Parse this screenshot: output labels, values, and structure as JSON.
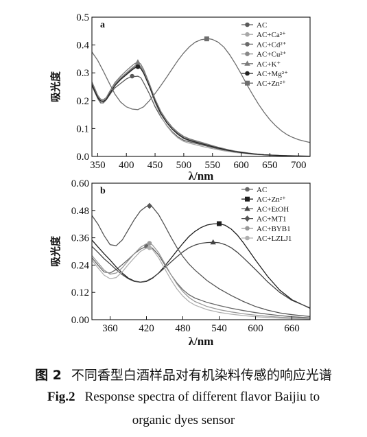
{
  "chart_data": [
    {
      "panel": "a",
      "type": "line",
      "xlabel": "λ/nm",
      "ylabel": "吸光度",
      "xlim": [
        340,
        720
      ],
      "ylim": [
        0.0,
        0.5
      ],
      "xticks": [
        350,
        400,
        450,
        500,
        550,
        600,
        650,
        700
      ],
      "yticks": [
        "0.0",
        "0.1",
        "0.2",
        "0.3",
        "0.4",
        "0.5"
      ],
      "legend_position": "top-right",
      "series": [
        {
          "name": "AC",
          "color": "#5a5a5a",
          "marker": "circle",
          "x": [
            340,
            345,
            350,
            355,
            360,
            365,
            370,
            375,
            380,
            390,
            400,
            410,
            415,
            420,
            425,
            430,
            440,
            450,
            460,
            470,
            480,
            490,
            500,
            510,
            520,
            530,
            540,
            550,
            560,
            570,
            580,
            590,
            600,
            610,
            620,
            640,
            660,
            680,
            700,
            720
          ],
          "y": [
            0.258,
            0.232,
            0.208,
            0.192,
            0.192,
            0.203,
            0.218,
            0.233,
            0.246,
            0.262,
            0.278,
            0.288,
            0.287,
            0.288,
            0.283,
            0.265,
            0.225,
            0.178,
            0.142,
            0.112,
            0.088,
            0.07,
            0.058,
            0.052,
            0.047,
            0.042,
            0.037,
            0.032,
            0.027,
            0.023,
            0.019,
            0.016,
            0.013,
            0.011,
            0.009,
            0.006,
            0.004,
            0.003,
            0.002,
            0.001
          ]
        },
        {
          "name": "AC+Ca²⁺",
          "color": "#a8a8a8",
          "marker": "circle",
          "x": [
            340,
            345,
            350,
            355,
            360,
            365,
            370,
            380,
            390,
            400,
            410,
            415,
            420,
            425,
            430,
            440,
            450,
            460,
            470,
            480,
            490,
            500,
            510,
            520,
            530,
            540,
            550,
            560,
            570,
            580,
            590,
            600,
            620,
            640,
            660,
            680,
            700,
            720
          ],
          "y": [
            0.262,
            0.238,
            0.214,
            0.198,
            0.196,
            0.203,
            0.222,
            0.255,
            0.275,
            0.292,
            0.31,
            0.318,
            0.322,
            0.318,
            0.302,
            0.252,
            0.192,
            0.145,
            0.11,
            0.085,
            0.066,
            0.054,
            0.047,
            0.042,
            0.037,
            0.032,
            0.028,
            0.024,
            0.02,
            0.017,
            0.014,
            0.012,
            0.008,
            0.005,
            0.003,
            0.002,
            0.001,
            0.001
          ]
        },
        {
          "name": "AC+Cd²⁺",
          "color": "#6a6a6a",
          "marker": "circle",
          "x": [
            340,
            345,
            350,
            355,
            360,
            365,
            370,
            380,
            390,
            400,
            410,
            415,
            420,
            425,
            430,
            440,
            450,
            460,
            470,
            480,
            490,
            500,
            510,
            520,
            530,
            540,
            550,
            560,
            570,
            580,
            590,
            600,
            620,
            640,
            660,
            680,
            700,
            720
          ],
          "y": [
            0.255,
            0.23,
            0.21,
            0.2,
            0.198,
            0.205,
            0.225,
            0.258,
            0.28,
            0.298,
            0.315,
            0.322,
            0.326,
            0.32,
            0.303,
            0.255,
            0.2,
            0.155,
            0.122,
            0.097,
            0.078,
            0.064,
            0.056,
            0.05,
            0.045,
            0.04,
            0.034,
            0.029,
            0.024,
            0.02,
            0.017,
            0.014,
            0.009,
            0.006,
            0.004,
            0.002,
            0.001,
            0.001
          ]
        },
        {
          "name": "AC+Cu²⁺",
          "color": "#888888",
          "marker": "circle",
          "x": [
            340,
            345,
            350,
            355,
            360,
            365,
            370,
            380,
            390,
            400,
            410,
            415,
            420,
            425,
            430,
            440,
            450,
            460,
            470,
            480,
            490,
            500,
            510,
            520,
            530,
            540,
            550,
            560,
            570,
            580,
            590,
            600,
            620,
            640,
            660,
            680,
            700,
            720
          ],
          "y": [
            0.265,
            0.24,
            0.216,
            0.202,
            0.2,
            0.207,
            0.226,
            0.26,
            0.282,
            0.3,
            0.318,
            0.326,
            0.33,
            0.324,
            0.306,
            0.258,
            0.203,
            0.16,
            0.128,
            0.103,
            0.084,
            0.07,
            0.061,
            0.055,
            0.049,
            0.043,
            0.037,
            0.031,
            0.026,
            0.022,
            0.018,
            0.015,
            0.01,
            0.006,
            0.004,
            0.002,
            0.001,
            0.001
          ]
        },
        {
          "name": "AC+K⁺",
          "color": "#7a7a7a",
          "marker": "triangle",
          "x": [
            340,
            345,
            350,
            355,
            360,
            365,
            370,
            380,
            390,
            400,
            410,
            415,
            420,
            425,
            430,
            440,
            450,
            460,
            470,
            480,
            490,
            500,
            510,
            520,
            530,
            540,
            550,
            560,
            570,
            580,
            590,
            600,
            620,
            640,
            660,
            680,
            700,
            720
          ],
          "y": [
            0.268,
            0.244,
            0.22,
            0.206,
            0.204,
            0.211,
            0.23,
            0.265,
            0.288,
            0.308,
            0.326,
            0.334,
            0.338,
            0.332,
            0.313,
            0.262,
            0.206,
            0.162,
            0.13,
            0.105,
            0.086,
            0.072,
            0.063,
            0.057,
            0.051,
            0.045,
            0.039,
            0.033,
            0.028,
            0.023,
            0.019,
            0.016,
            0.01,
            0.006,
            0.004,
            0.002,
            0.001,
            0.001
          ]
        },
        {
          "name": "AC+Mg²⁺",
          "color": "#222222",
          "marker": "circle",
          "x": [
            340,
            345,
            350,
            355,
            360,
            365,
            370,
            380,
            390,
            400,
            410,
            415,
            420,
            425,
            430,
            440,
            450,
            460,
            470,
            480,
            490,
            500,
            510,
            520,
            530,
            540,
            550,
            560,
            570,
            580,
            590,
            600,
            620,
            640,
            660,
            680,
            700,
            720
          ],
          "y": [
            0.258,
            0.234,
            0.212,
            0.199,
            0.197,
            0.204,
            0.222,
            0.254,
            0.276,
            0.294,
            0.311,
            0.318,
            0.322,
            0.316,
            0.299,
            0.252,
            0.198,
            0.154,
            0.122,
            0.098,
            0.08,
            0.066,
            0.058,
            0.052,
            0.046,
            0.041,
            0.035,
            0.03,
            0.025,
            0.021,
            0.017,
            0.014,
            0.009,
            0.006,
            0.004,
            0.002,
            0.001,
            0.001
          ]
        },
        {
          "name": "AC+Zn²⁺",
          "color": "#6e6e6e",
          "marker": "square",
          "x": [
            340,
            350,
            360,
            370,
            380,
            390,
            400,
            410,
            420,
            430,
            440,
            450,
            460,
            470,
            480,
            490,
            500,
            510,
            520,
            530,
            540,
            545,
            550,
            560,
            570,
            580,
            590,
            600,
            610,
            620,
            630,
            640,
            650,
            660,
            670,
            680,
            690,
            700,
            710,
            720
          ],
          "y": [
            0.375,
            0.345,
            0.306,
            0.264,
            0.224,
            0.195,
            0.178,
            0.17,
            0.168,
            0.178,
            0.2,
            0.226,
            0.254,
            0.284,
            0.315,
            0.345,
            0.372,
            0.394,
            0.41,
            0.419,
            0.422,
            0.422,
            0.42,
            0.41,
            0.392,
            0.365,
            0.332,
            0.296,
            0.258,
            0.222,
            0.188,
            0.158,
            0.132,
            0.11,
            0.092,
            0.078,
            0.068,
            0.06,
            0.055,
            0.05
          ]
        }
      ]
    },
    {
      "panel": "b",
      "type": "line",
      "xlabel": "λ/nm",
      "ylabel": "吸光度",
      "xlim": [
        330,
        690
      ],
      "ylim": [
        0.0,
        0.6
      ],
      "xticks": [
        360,
        420,
        480,
        540,
        600,
        660
      ],
      "yticks": [
        "0.00",
        "0.12",
        "0.24",
        "0.36",
        "0.48",
        "0.60"
      ],
      "legend_position": "top-right",
      "series": [
        {
          "name": "AC",
          "color": "#666666",
          "marker": "circle",
          "x": [
            330,
            340,
            350,
            360,
            370,
            380,
            390,
            400,
            410,
            420,
            425,
            430,
            440,
            450,
            460,
            470,
            480,
            490,
            500,
            520,
            540,
            560,
            580,
            600,
            620,
            640,
            660,
            690
          ],
          "y": [
            0.272,
            0.24,
            0.21,
            0.205,
            0.22,
            0.242,
            0.265,
            0.29,
            0.31,
            0.322,
            0.322,
            0.314,
            0.285,
            0.242,
            0.2,
            0.162,
            0.132,
            0.11,
            0.095,
            0.076,
            0.062,
            0.05,
            0.04,
            0.031,
            0.024,
            0.018,
            0.013,
            0.008
          ]
        },
        {
          "name": "AC+Zn²⁺",
          "color": "#1e1e1e",
          "marker": "square",
          "x": [
            330,
            340,
            350,
            360,
            370,
            380,
            390,
            400,
            410,
            420,
            430,
            440,
            450,
            460,
            470,
            480,
            490,
            500,
            510,
            520,
            530,
            540,
            550,
            560,
            570,
            580,
            590,
            600,
            620,
            640,
            660,
            690
          ],
          "y": [
            0.35,
            0.32,
            0.29,
            0.262,
            0.232,
            0.205,
            0.183,
            0.17,
            0.165,
            0.168,
            0.182,
            0.205,
            0.235,
            0.268,
            0.302,
            0.335,
            0.365,
            0.388,
            0.405,
            0.416,
            0.421,
            0.422,
            0.415,
            0.398,
            0.372,
            0.338,
            0.3,
            0.262,
            0.19,
            0.13,
            0.088,
            0.05
          ]
        },
        {
          "name": "AC+EtOH",
          "color": "#444444",
          "marker": "triangle",
          "x": [
            330,
            340,
            350,
            360,
            370,
            380,
            390,
            400,
            410,
            420,
            430,
            440,
            450,
            460,
            470,
            480,
            490,
            500,
            510,
            520,
            530,
            540,
            550,
            560,
            570,
            580,
            590,
            600,
            620,
            640,
            660,
            690
          ],
          "y": [
            0.322,
            0.296,
            0.268,
            0.245,
            0.22,
            0.198,
            0.18,
            0.168,
            0.165,
            0.17,
            0.184,
            0.204,
            0.228,
            0.252,
            0.276,
            0.298,
            0.316,
            0.328,
            0.336,
            0.339,
            0.34,
            0.338,
            0.33,
            0.316,
            0.296,
            0.272,
            0.246,
            0.22,
            0.166,
            0.12,
            0.085,
            0.052
          ]
        },
        {
          "name": "AC+MT1",
          "color": "#555555",
          "marker": "diamond",
          "x": [
            330,
            340,
            350,
            360,
            370,
            380,
            390,
            400,
            410,
            420,
            425,
            430,
            440,
            450,
            460,
            470,
            480,
            490,
            500,
            520,
            540,
            560,
            580,
            600,
            620,
            640,
            660,
            690
          ],
          "y": [
            0.458,
            0.42,
            0.37,
            0.33,
            0.325,
            0.35,
            0.395,
            0.44,
            0.478,
            0.498,
            0.5,
            0.495,
            0.462,
            0.415,
            0.365,
            0.318,
            0.278,
            0.245,
            0.218,
            0.172,
            0.136,
            0.106,
            0.08,
            0.058,
            0.042,
            0.03,
            0.022,
            0.014
          ]
        },
        {
          "name": "AC+BYB1",
          "color": "#999999",
          "marker": "circle",
          "x": [
            330,
            340,
            350,
            360,
            370,
            380,
            390,
            400,
            410,
            420,
            425,
            430,
            440,
            450,
            460,
            470,
            480,
            490,
            500,
            520,
            540,
            560,
            580,
            600,
            620,
            640,
            660,
            690
          ],
          "y": [
            0.282,
            0.25,
            0.218,
            0.2,
            0.205,
            0.228,
            0.26,
            0.29,
            0.318,
            0.334,
            0.336,
            0.328,
            0.295,
            0.248,
            0.2,
            0.158,
            0.124,
            0.098,
            0.08,
            0.058,
            0.044,
            0.034,
            0.026,
            0.02,
            0.015,
            0.011,
            0.008,
            0.005
          ]
        },
        {
          "name": "AC+LZLJ1",
          "color": "#b0b0b0",
          "marker": "circle",
          "x": [
            330,
            340,
            350,
            360,
            370,
            380,
            390,
            400,
            410,
            420,
            425,
            430,
            440,
            450,
            460,
            470,
            480,
            490,
            500,
            520,
            540,
            560,
            580,
            600,
            620,
            640,
            660,
            690
          ],
          "y": [
            0.262,
            0.228,
            0.196,
            0.18,
            0.185,
            0.21,
            0.242,
            0.272,
            0.3,
            0.315,
            0.316,
            0.308,
            0.272,
            0.225,
            0.178,
            0.136,
            0.104,
            0.08,
            0.064,
            0.044,
            0.032,
            0.024,
            0.018,
            0.013,
            0.01,
            0.007,
            0.005,
            0.003
          ]
        }
      ]
    }
  ],
  "caption": {
    "cn_label": "图 2",
    "cn_text": "不同香型白酒样品对有机染料传感的响应光谱",
    "en_label": "Fig.2",
    "en_text_line1": "Response spectra of different flavor Baijiu to",
    "en_text_line2": "organic dyes sensor"
  }
}
